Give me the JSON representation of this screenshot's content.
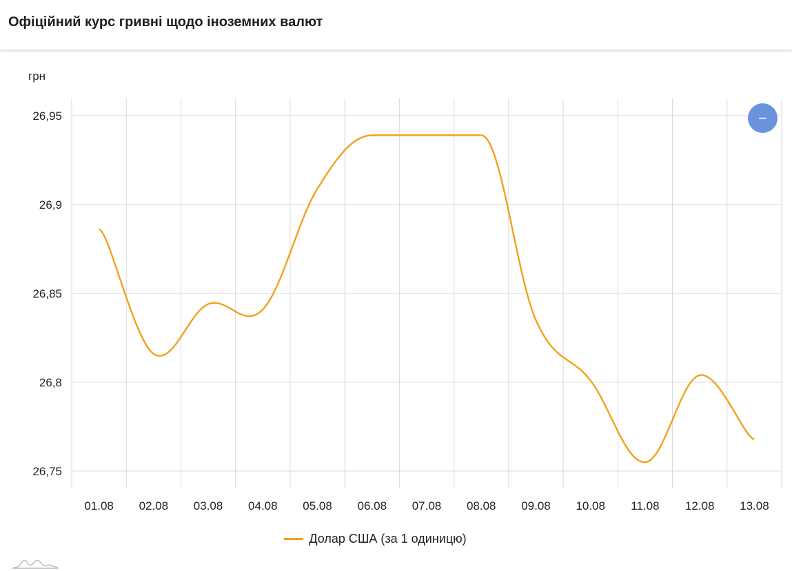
{
  "header": {
    "title": "Офіційний курс гривні щодо іноземних валют"
  },
  "zoom_button": {
    "icon": "minus-icon",
    "label": "−"
  },
  "colors": {
    "series": "#f2a11c",
    "grid": "#d9d9d9",
    "button": "#6b93db"
  },
  "chart_data": {
    "type": "line",
    "ylabel": "грн",
    "categories": [
      "01.08",
      "02.08",
      "03.08",
      "04.08",
      "05.08",
      "06.08",
      "07.08",
      "08.08",
      "09.08",
      "10.08",
      "11.08",
      "12.08",
      "13.08"
    ],
    "series": [
      {
        "name": "Долар США (за 1 одиницю)",
        "values": [
          26.886,
          26.816,
          26.844,
          26.841,
          26.909,
          26.939,
          26.939,
          26.939,
          26.835,
          26.801,
          26.755,
          26.804,
          26.768
        ]
      }
    ],
    "yticks": [
      "26,75",
      "26,8",
      "26,85",
      "26,9",
      "26,95"
    ],
    "ytick_values": [
      26.75,
      26.8,
      26.85,
      26.9,
      26.95
    ],
    "ylim": [
      26.74,
      26.96
    ],
    "grid": true,
    "legend": "bottom-center"
  }
}
